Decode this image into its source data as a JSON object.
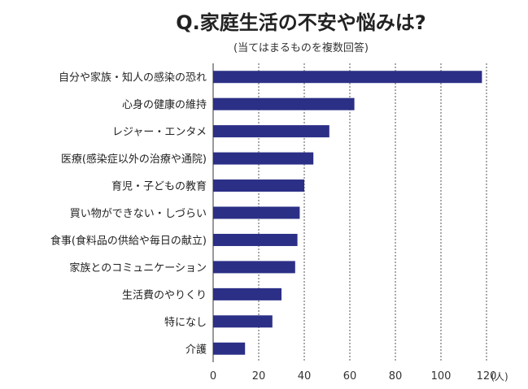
{
  "chart_data": {
    "type": "bar",
    "orientation": "horizontal",
    "title": "Q.家庭生活の不安や悩みは?",
    "subtitle": "(当てはまるものを複数回答)",
    "xlabel": "",
    "ylabel": "",
    "unit": "(人)",
    "xlim": [
      0,
      120
    ],
    "xticks": [
      "0",
      "20",
      "40",
      "60",
      "80",
      "100",
      "120"
    ],
    "grid": "vertical dashed",
    "legend": "none",
    "bar_color": "#2b2f86",
    "categories": [
      "自分や家族・知人の感染の恐れ",
      "心身の健康の維持",
      "レジャー・エンタメ",
      "医療(感染症以外の治療や通院)",
      "育児・子どもの教育",
      "買い物ができない・しづらい",
      "食事(食料品の供給や毎日の献立)",
      "家族とのコミュニケーション",
      "生活費のやりくり",
      "特になし",
      "介護"
    ],
    "values": [
      118,
      62,
      51,
      44,
      40,
      38,
      37,
      36,
      30,
      26,
      14
    ]
  }
}
